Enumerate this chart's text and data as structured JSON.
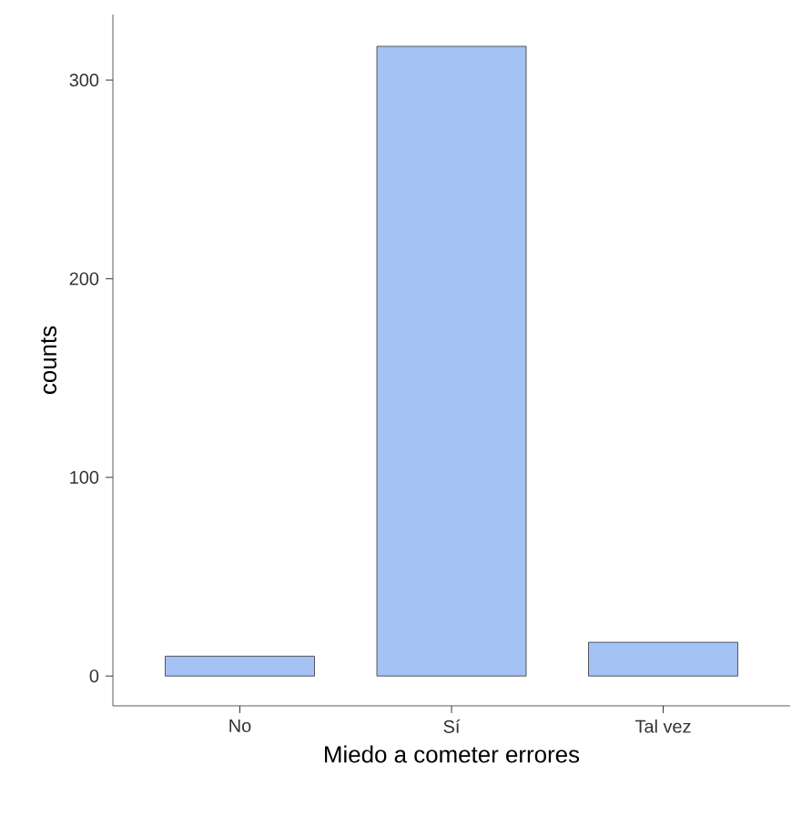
{
  "chart_data": {
    "type": "bar",
    "xlabel": "Miedo a cometer errores",
    "ylabel": "counts",
    "categories": [
      "No",
      "Sí",
      "Tal vez"
    ],
    "values": [
      10,
      317,
      17
    ],
    "color": "#a4c2f4",
    "ylim": [
      -15,
      333
    ],
    "yticks": [
      0,
      100,
      200,
      300
    ],
    "grid": false
  }
}
